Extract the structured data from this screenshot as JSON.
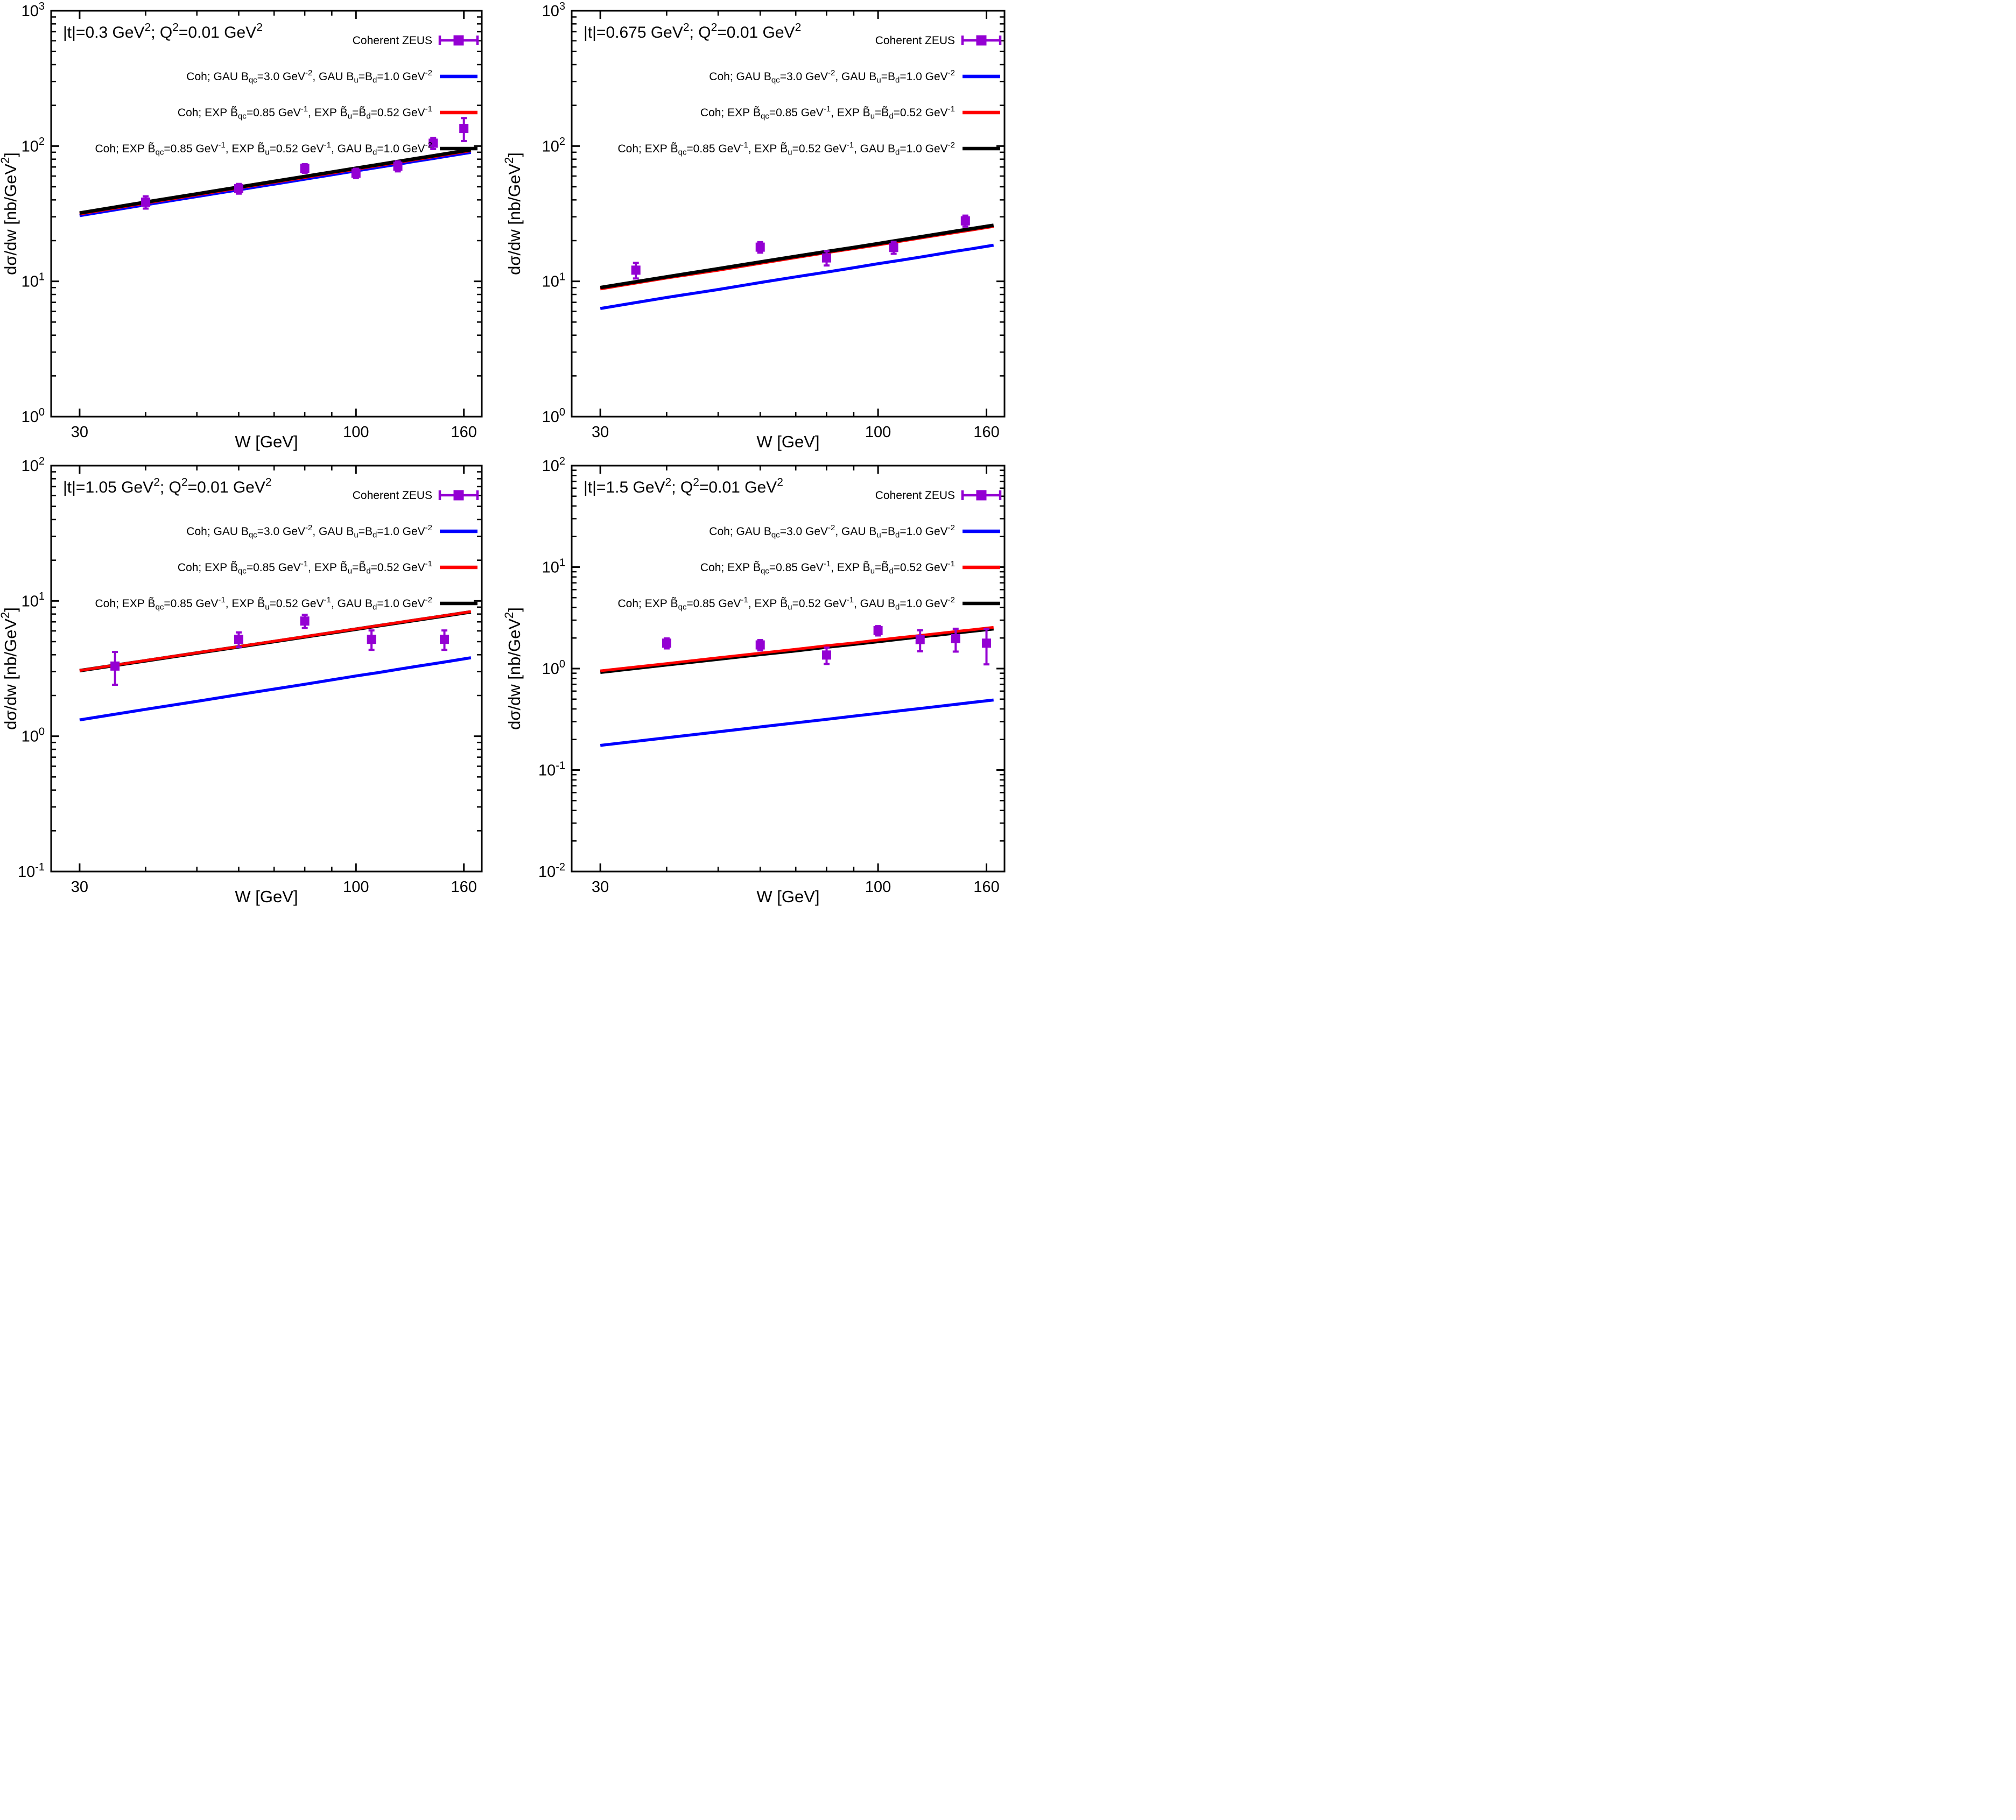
{
  "figure": {
    "background": "#ffffff",
    "axis_color": "#000000",
    "xlabel": "W [GeV]",
    "ylabel": "dσ/dw [nb/GeV^[2]]",
    "x_tick_labels": [
      "30",
      "100",
      "160"
    ],
    "legend": [
      {
        "id": "zeus",
        "label": "Coherent ZEUS",
        "sample": "marker",
        "color": "#9400d3"
      },
      {
        "id": "gau",
        "label": "Coh; GAU B_[qc]=3.0 GeV^[-2], GAU B_[u]=B_[d]=1.0 GeV^[-2]",
        "sample": "line",
        "color": "#0000ff"
      },
      {
        "id": "exp",
        "label": "Coh; EXP B̃_[qc]=0.85 GeV^[-1], EXP B̃_[u]=B̃_[d]=0.52 GeV^[-1]",
        "sample": "line",
        "color": "#ff0000"
      },
      {
        "id": "exp-gau",
        "label": "Coh; EXP B̃_[qc]=0.85 GeV^[-1], EXP B̃_[u]=0.52 GeV^[-1], GAU B_[d]=1.0 GeV^[-2]",
        "sample": "line",
        "color": "#000000"
      }
    ],
    "curve_W": [
      30,
      40,
      50,
      60,
      70,
      80,
      90,
      100,
      110,
      120,
      130,
      140,
      150,
      165
    ]
  },
  "chart_data": [
    {
      "type": "line",
      "title": "|t|=0.3 GeV^[2]; Q^[2]=0.01 GeV^[2]",
      "xscale": "log",
      "yscale": "log",
      "xlim": [
        26.5,
        173
      ],
      "x_ticks_major": [
        30,
        100,
        160
      ],
      "x_ticks_minor": [
        40,
        50,
        60,
        70,
        80,
        90
      ],
      "y_tick_exponents": [
        0,
        1,
        2,
        3
      ],
      "curves": [
        {
          "legend_id": "gau",
          "color": "#0000ff",
          "width": 5.5,
          "y": [
            30.6,
            36.8,
            42.3,
            47.5,
            52.3,
            56.9,
            61.3,
            65.5,
            69.5,
            73.4,
            77.3,
            80.9,
            84.5,
            89.7
          ]
        },
        {
          "legend_id": "exp",
          "color": "#ff0000",
          "width": 5.5,
          "y": [
            31.5,
            37.9,
            43.6,
            49.0,
            54.0,
            58.7,
            63.2,
            67.6,
            71.7,
            75.7,
            79.7,
            83.4,
            87.2,
            92.5
          ]
        },
        {
          "legend_id": "exp-gau",
          "color": "#000000",
          "width": 6.5,
          "y": [
            32.0,
            38.5,
            44.3,
            49.7,
            54.8,
            59.6,
            64.2,
            68.6,
            72.8,
            76.9,
            80.9,
            84.7,
            88.5,
            93.9
          ]
        }
      ],
      "zeus_points": {
        "W": [
          40,
          60,
          80,
          100,
          120,
          140,
          160
        ],
        "y": [
          38.5,
          48.5,
          68.5,
          63,
          71,
          105,
          135
        ],
        "yerr": [
          4,
          4,
          5,
          5,
          6,
          10,
          26
        ]
      }
    },
    {
      "type": "line",
      "title": "|t|=0.675 GeV^[2]; Q^[2]=0.01 GeV^[2]",
      "xscale": "log",
      "yscale": "log",
      "xlim": [
        26.5,
        173
      ],
      "x_ticks_major": [
        30,
        100,
        160
      ],
      "x_ticks_minor": [
        40,
        50,
        60,
        70,
        80,
        90
      ],
      "y_tick_exponents": [
        0,
        1,
        2,
        3
      ],
      "curves": [
        {
          "legend_id": "gau",
          "color": "#0000ff",
          "width": 5.5,
          "y": [
            6.3,
            7.6,
            8.7,
            9.8,
            10.8,
            11.7,
            12.6,
            13.5,
            14.3,
            15.1,
            15.9,
            16.7,
            17.4,
            18.5
          ]
        },
        {
          "legend_id": "exp",
          "color": "#ff0000",
          "width": 5.5,
          "y": [
            8.8,
            10.6,
            12.1,
            13.6,
            15.0,
            16.3,
            17.5,
            18.6,
            19.8,
            20.9,
            22.0,
            23.0,
            24.0,
            25.5
          ]
        },
        {
          "legend_id": "exp-gau",
          "color": "#000000",
          "width": 6.5,
          "y": [
            9.0,
            10.8,
            12.4,
            13.9,
            15.3,
            16.6,
            17.8,
            19.0,
            20.2,
            21.3,
            22.4,
            23.5,
            24.5,
            26.0
          ]
        }
      ],
      "zeus_points": {
        "W": [
          35,
          60,
          80,
          107,
          146
        ],
        "y": [
          12.1,
          17.9,
          14.9,
          17.8,
          28
        ],
        "yerr": [
          1.6,
          1.6,
          1.8,
          1.8,
          2.6
        ]
      }
    },
    {
      "type": "line",
      "title": "|t|=1.05 GeV^[2]; Q^[2]=0.01 GeV^[2]",
      "xscale": "log",
      "yscale": "log",
      "xlim": [
        26.5,
        173
      ],
      "x_ticks_major": [
        30,
        100,
        160
      ],
      "x_ticks_minor": [
        40,
        50,
        60,
        70,
        80,
        90
      ],
      "y_tick_exponents": [
        -1,
        0,
        1,
        2
      ],
      "curves": [
        {
          "legend_id": "gau",
          "color": "#0000ff",
          "width": 5.5,
          "y": [
            1.32,
            1.58,
            1.81,
            2.03,
            2.23,
            2.42,
            2.61,
            2.79,
            2.95,
            3.12,
            3.28,
            3.43,
            3.58,
            3.8
          ]
        },
        {
          "legend_id": "exp-gau",
          "color": "#000000",
          "width": 6.5,
          "y": [
            3.05,
            3.61,
            4.12,
            4.58,
            5.01,
            5.42,
            5.81,
            6.18,
            6.54,
            6.88,
            7.21,
            7.53,
            7.84,
            8.3
          ]
        },
        {
          "legend_id": "exp",
          "color": "#ff0000",
          "width": 5.0,
          "y": [
            3.06,
            3.63,
            4.14,
            4.6,
            5.04,
            5.45,
            5.84,
            6.21,
            6.57,
            6.92,
            7.25,
            7.57,
            7.88,
            8.34
          ]
        }
      ],
      "zeus_points": {
        "W": [
          35,
          60,
          80,
          107,
          147
        ],
        "y": [
          3.3,
          5.2,
          7.1,
          5.2,
          5.2
        ],
        "yerr": [
          0.9,
          0.65,
          0.8,
          0.85,
          0.85
        ]
      }
    },
    {
      "type": "line",
      "title": "|t|=1.5 GeV^[2]; Q^[2]=0.01 GeV^[2]",
      "xscale": "log",
      "yscale": "log",
      "xlim": [
        26.5,
        173
      ],
      "x_ticks_major": [
        30,
        100,
        160
      ],
      "x_ticks_minor": [
        40,
        50,
        60,
        70,
        80,
        90
      ],
      "y_tick_exponents": [
        -2,
        -1,
        0,
        1,
        2
      ],
      "curves": [
        {
          "legend_id": "gau",
          "color": "#0000ff",
          "width": 5.5,
          "y": [
            0.175,
            0.208,
            0.238,
            0.266,
            0.292,
            0.316,
            0.34,
            0.362,
            0.384,
            0.404,
            0.424,
            0.444,
            0.463,
            0.49
          ]
        },
        {
          "legend_id": "exp-gau",
          "color": "#000000",
          "width": 6.5,
          "y": [
            0.92,
            1.09,
            1.24,
            1.38,
            1.5,
            1.63,
            1.74,
            1.85,
            1.96,
            2.06,
            2.15,
            2.25,
            2.34,
            2.47
          ]
        },
        {
          "legend_id": "exp",
          "color": "#ff0000",
          "width": 5.0,
          "y": [
            0.95,
            1.12,
            1.28,
            1.42,
            1.55,
            1.68,
            1.79,
            1.91,
            2.02,
            2.12,
            2.22,
            2.32,
            2.41,
            2.55
          ]
        }
      ],
      "zeus_points": {
        "W": [
          40,
          60,
          80,
          100,
          120,
          140,
          160
        ],
        "y": [
          1.78,
          1.71,
          1.36,
          2.37,
          1.93,
          1.97,
          1.78
        ],
        "yerr": [
          0.2,
          0.2,
          0.25,
          0.25,
          0.45,
          0.5,
          0.68
        ]
      }
    }
  ]
}
